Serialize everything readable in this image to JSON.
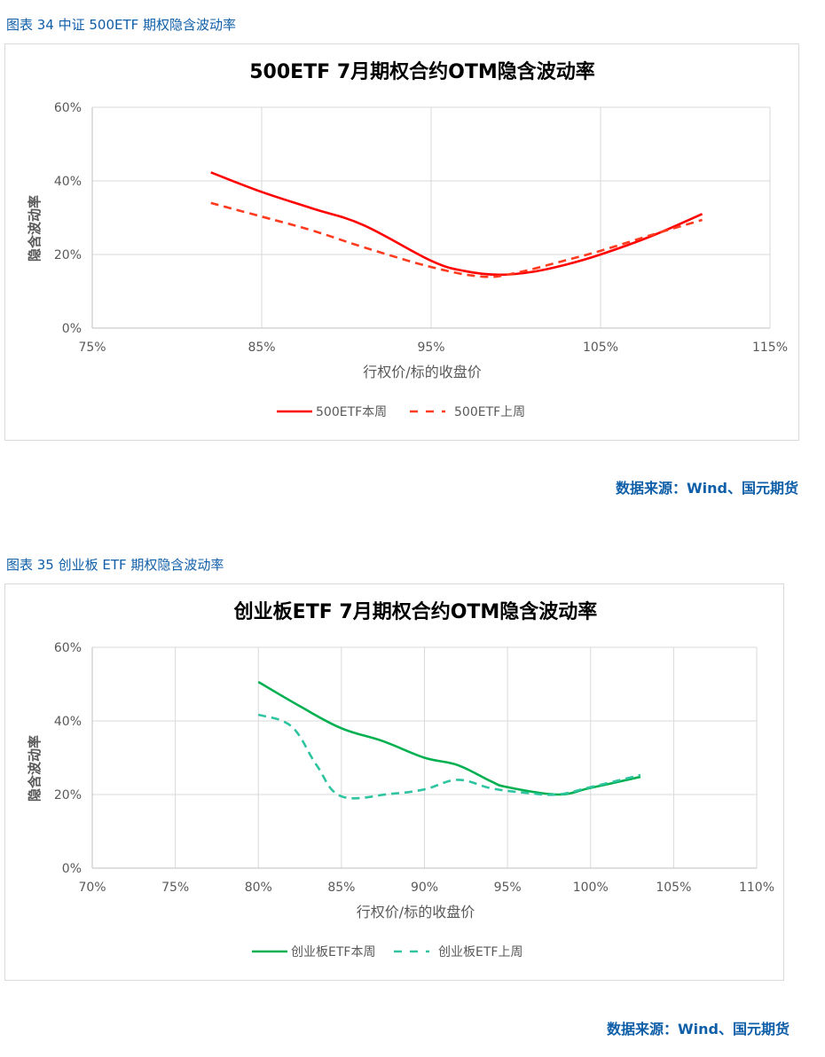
{
  "figures": [
    {
      "caption": "图表 34  中证 500ETF 期权隐含波动率",
      "source": "数据来源：Wind、国元期货"
    },
    {
      "caption": "图表 35  创业板 ETF 期权隐含波动率",
      "source": "数据来源：Wind、国元期货"
    }
  ],
  "chart_data": [
    {
      "type": "line",
      "title": "500ETF  7月期权合约OTM隐含波动率",
      "xlabel": "行权价/标的收盘价",
      "ylabel": "隐含波动率",
      "xlim": [
        75,
        115
      ],
      "ylim": [
        0,
        60
      ],
      "x_ticks": [
        "75%",
        "85%",
        "95%",
        "105%",
        "115%"
      ],
      "y_ticks": [
        "0%",
        "20%",
        "40%",
        "60%"
      ],
      "grid": true,
      "legend_position": "bottom",
      "series": [
        {
          "name": "500ETF本周",
          "style": "solid",
          "color": "#ff0000",
          "x": [
            82,
            85,
            88,
            91,
            95,
            97,
            99,
            101,
            103,
            105,
            108,
            111
          ],
          "y": [
            42.3,
            37.0,
            32.5,
            28.0,
            18.3,
            15.5,
            14.5,
            15.3,
            17.3,
            20.0,
            25.0,
            31.0
          ]
        },
        {
          "name": "500ETF上周",
          "style": "dashed",
          "color": "#ff3b1f",
          "x": [
            82,
            85,
            88,
            91,
            95,
            98,
            100,
            103,
            105,
            108,
            111
          ],
          "y": [
            34.0,
            30.3,
            26.5,
            22.0,
            16.6,
            14.0,
            15.0,
            18.5,
            21.0,
            25.3,
            29.4
          ]
        }
      ]
    },
    {
      "type": "line",
      "title": "创业板ETF  7月期权合约OTM隐含波动率",
      "xlabel": "行权价/标的收盘价",
      "ylabel": "隐含波动率",
      "xlim": [
        70,
        110
      ],
      "ylim": [
        0,
        60
      ],
      "x_ticks": [
        "70%",
        "75%",
        "80%",
        "85%",
        "90%",
        "95%",
        "100%",
        "105%",
        "110%"
      ],
      "y_ticks": [
        "0%",
        "20%",
        "40%",
        "60%"
      ],
      "grid": true,
      "legend_position": "bottom",
      "series": [
        {
          "name": "创业板ETF本周",
          "style": "solid",
          "color": "#00b050",
          "x": [
            80,
            82.5,
            85,
            87.5,
            90,
            92,
            94,
            95,
            98,
            100,
            103
          ],
          "y": [
            50.6,
            44.0,
            38.0,
            34.5,
            30.0,
            28.0,
            23.6,
            22.0,
            20.0,
            21.8,
            24.8
          ]
        },
        {
          "name": "创业板ETF上周",
          "style": "dashed",
          "color": "#2ec4a0",
          "x": [
            80,
            82,
            83.5,
            85,
            88,
            90,
            92,
            94,
            96,
            98,
            100,
            103
          ],
          "y": [
            41.7,
            38.5,
            28.0,
            19.5,
            20.2,
            21.4,
            24.0,
            21.7,
            20.5,
            20.0,
            22.0,
            25.3
          ]
        }
      ]
    }
  ]
}
